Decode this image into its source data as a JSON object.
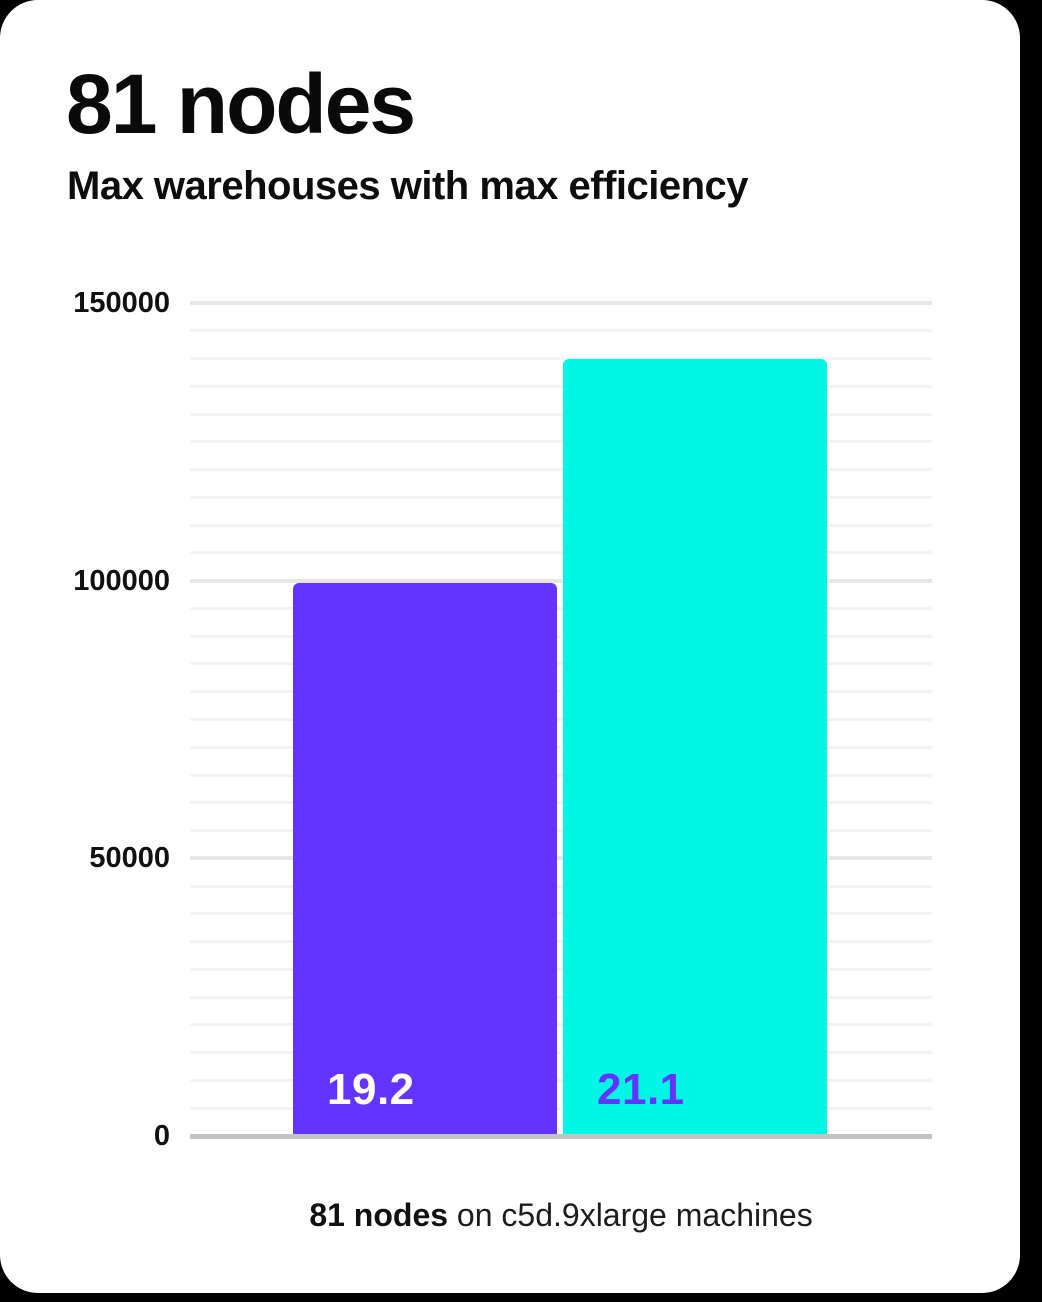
{
  "card": {
    "title": "81 nodes",
    "subtitle": "Max warehouses with max efficiency"
  },
  "caption": {
    "bold": "81 nodes",
    "rest": " on c5d.9xlarge machines"
  },
  "colors": {
    "background": "#000000",
    "card": "#ffffff",
    "bar_purple": "#6333ff",
    "bar_cyan": "#00f7e7",
    "bar_label_on_purple": "#ffffff",
    "bar_label_on_cyan": "#6333ff",
    "grid_minor": "#f3f3f3",
    "grid_major": "#e7e7e7",
    "axis_line": "#c3c3c3",
    "text": "#111111"
  },
  "chart_data": {
    "type": "bar",
    "title": "81 nodes",
    "subtitle": "Max warehouses with max efficiency",
    "categories": [
      "19.2",
      "21.1"
    ],
    "values": [
      99500,
      140000
    ],
    "bar_labels": [
      "19.2",
      "21.1"
    ],
    "bar_colors": [
      "#6333ff",
      "#00f7e7"
    ],
    "bar_label_colors": [
      "#ffffff",
      "#6333ff"
    ],
    "xlabel": "",
    "ylabel": "",
    "ylim": [
      0,
      150000
    ],
    "yticks": [
      0,
      50000,
      100000,
      150000
    ],
    "ytick_labels": [
      "0",
      "50000",
      "100000",
      "150000"
    ],
    "minor_grid_step": 5000,
    "grid": true,
    "legend": false,
    "caption": "81 nodes on c5d.9xlarge machines"
  }
}
